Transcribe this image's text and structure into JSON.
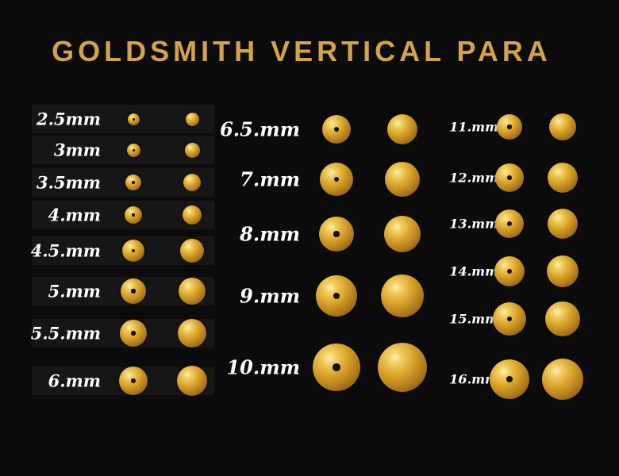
{
  "title": "GOLDSMITH VERTICAL PARA",
  "columns": [
    {
      "rows": [
        {
          "label": "2.5mm",
          "size": 2.5
        },
        {
          "label": "3mm",
          "size": 3
        },
        {
          "label": "3.5mm",
          "size": 3.5
        },
        {
          "label": "4.mm",
          "size": 4
        },
        {
          "label": "4.5.mm",
          "size": 4.5
        },
        {
          "label": "5.mm",
          "size": 5
        },
        {
          "label": "5.5.mm",
          "size": 5.5
        },
        {
          "label": "6.mm",
          "size": 6
        }
      ]
    },
    {
      "rows": [
        {
          "label": "6.5.mm",
          "size": 6.5
        },
        {
          "label": "7.mm",
          "size": 7
        },
        {
          "label": "8.mm",
          "size": 8
        },
        {
          "label": "9.mm",
          "size": 9
        },
        {
          "label": "10.mm",
          "size": 10
        }
      ]
    },
    {
      "rows": [
        {
          "label": "11.mm",
          "size": 11
        },
        {
          "label": "12.mm",
          "size": 12
        },
        {
          "label": "13.mm",
          "size": 13
        },
        {
          "label": "14.mm",
          "size": 14
        },
        {
          "label": "15.mm",
          "size": 15
        },
        {
          "label": "16.mm",
          "size": 16
        }
      ]
    }
  ]
}
